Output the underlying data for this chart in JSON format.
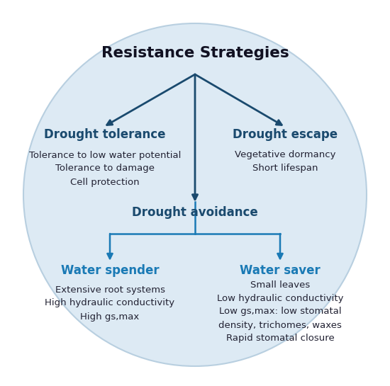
{
  "background_color": "#ffffff",
  "circle_color": "#ddeaf4",
  "circle_edge_color": "#b8cfe0",
  "arrow_color_dark": "#1a4a6e",
  "arrow_color_light": "#1a7ab5",
  "title_text": "Resistance Strategies",
  "title_color": "#111122",
  "title_fontsize": 15.5,
  "subtitle_color_dark": "#1a4a6e",
  "subtitle_color_light": "#1a7ab5",
  "subtitle_fontsize": 12,
  "body_color": "#222233",
  "body_fontsize": 9.5,
  "tolerance_body": "Tolerance to low water potential\nTolerance to damage\nCell protection",
  "escape_body": "Vegetative dormancy\nShort lifespan",
  "spender_body": "Extensive root systems\nHigh hydraulic conductivity\nHigh gs,max",
  "saver_body": "Small leaves\nLow hydraulic conductivity\nLow gs,max: low stomatal\ndensity, trichomes, waxes\nRapid stomatal closure"
}
